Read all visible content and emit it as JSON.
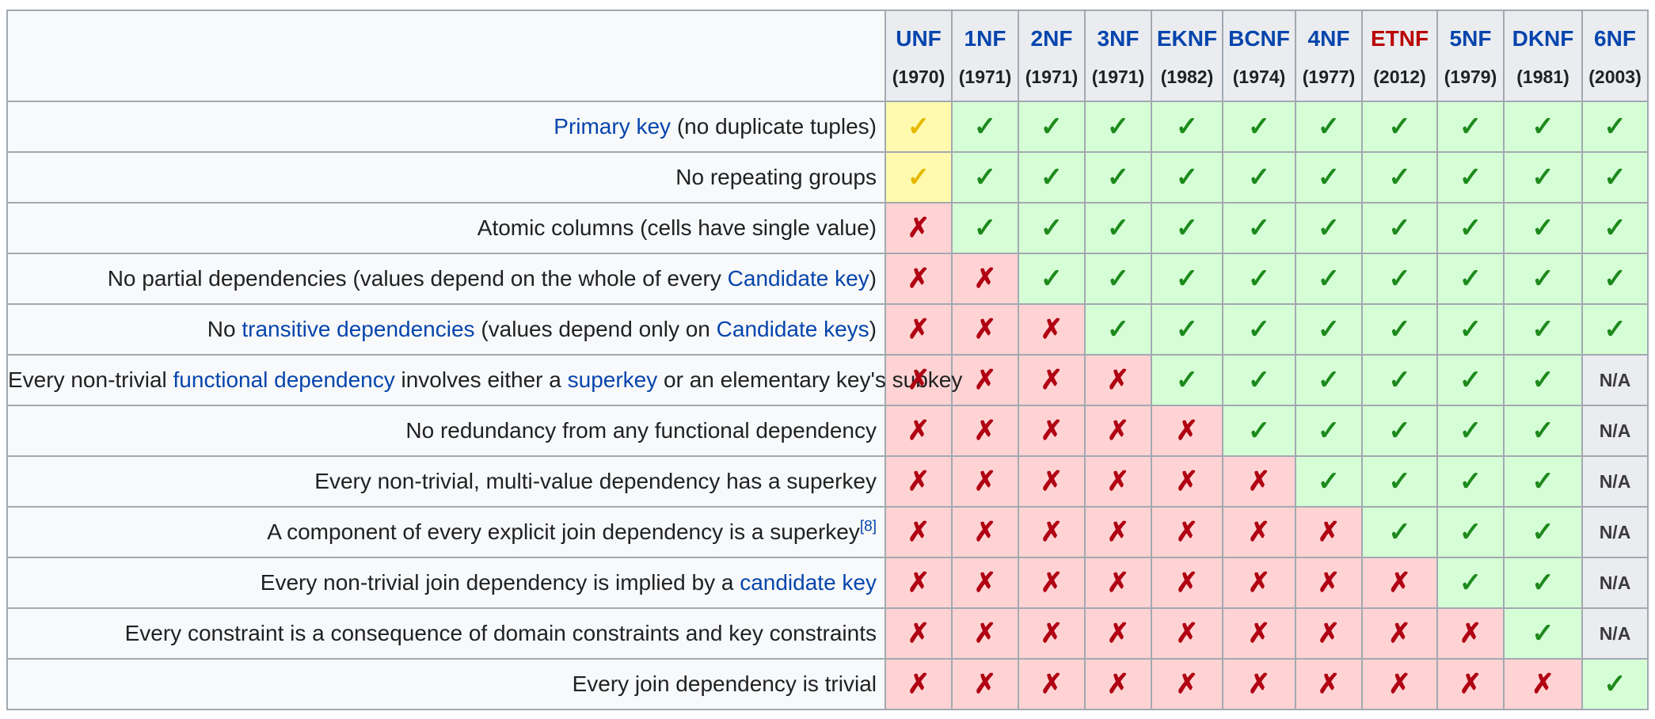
{
  "columns": [
    {
      "name": "UNF",
      "year": "(1970)",
      "highlight": false
    },
    {
      "name": "1NF",
      "year": "(1971)",
      "highlight": false
    },
    {
      "name": "2NF",
      "year": "(1971)",
      "highlight": false
    },
    {
      "name": "3NF",
      "year": "(1971)",
      "highlight": false
    },
    {
      "name": "EKNF",
      "year": "(1982)",
      "highlight": false
    },
    {
      "name": "BCNF",
      "year": "(1974)",
      "highlight": false
    },
    {
      "name": "4NF",
      "year": "(1977)",
      "highlight": false
    },
    {
      "name": "ETNF",
      "year": "(2012)",
      "highlight": true
    },
    {
      "name": "5NF",
      "year": "(1979)",
      "highlight": false
    },
    {
      "name": "DKNF",
      "year": "(1981)",
      "highlight": false
    },
    {
      "name": "6NF",
      "year": "(2003)",
      "highlight": false
    }
  ],
  "rows": [
    {
      "label": [
        {
          "t": "Primary key",
          "link": true
        },
        {
          "t": " (no duplicate tuples)"
        }
      ],
      "values": [
        "partial",
        "yes",
        "yes",
        "yes",
        "yes",
        "yes",
        "yes",
        "yes",
        "yes",
        "yes",
        "yes"
      ]
    },
    {
      "label": [
        {
          "t": "No repeating groups"
        }
      ],
      "values": [
        "partial",
        "yes",
        "yes",
        "yes",
        "yes",
        "yes",
        "yes",
        "yes",
        "yes",
        "yes",
        "yes"
      ]
    },
    {
      "label": [
        {
          "t": "Atomic columns (cells have single value)"
        }
      ],
      "values": [
        "no",
        "yes",
        "yes",
        "yes",
        "yes",
        "yes",
        "yes",
        "yes",
        "yes",
        "yes",
        "yes"
      ]
    },
    {
      "label": [
        {
          "t": "No partial dependencies (values depend on the whole of every "
        },
        {
          "t": "Candidate key",
          "link": true
        },
        {
          "t": ")"
        }
      ],
      "values": [
        "no",
        "no",
        "yes",
        "yes",
        "yes",
        "yes",
        "yes",
        "yes",
        "yes",
        "yes",
        "yes"
      ]
    },
    {
      "label": [
        {
          "t": "No "
        },
        {
          "t": "transitive dependencies",
          "link": true
        },
        {
          "t": " (values depend only on "
        },
        {
          "t": "Candidate keys",
          "link": true
        },
        {
          "t": ")"
        }
      ],
      "values": [
        "no",
        "no",
        "no",
        "yes",
        "yes",
        "yes",
        "yes",
        "yes",
        "yes",
        "yes",
        "yes"
      ]
    },
    {
      "label": [
        {
          "t": "Every non-trivial "
        },
        {
          "t": "functional dependency",
          "link": true
        },
        {
          "t": " involves either a "
        },
        {
          "t": "superkey",
          "link": true
        },
        {
          "t": " or an elementary key's subkey"
        }
      ],
      "values": [
        "no",
        "no",
        "no",
        "no",
        "yes",
        "yes",
        "yes",
        "yes",
        "yes",
        "yes",
        "na"
      ]
    },
    {
      "label": [
        {
          "t": "No redundancy from any functional dependency"
        }
      ],
      "values": [
        "no",
        "no",
        "no",
        "no",
        "no",
        "yes",
        "yes",
        "yes",
        "yes",
        "yes",
        "na"
      ]
    },
    {
      "label": [
        {
          "t": "Every non-trivial, multi-value dependency has a superkey"
        }
      ],
      "values": [
        "no",
        "no",
        "no",
        "no",
        "no",
        "no",
        "yes",
        "yes",
        "yes",
        "yes",
        "na"
      ]
    },
    {
      "label": [
        {
          "t": "A component of every explicit join dependency is a superkey"
        },
        {
          "t": "[8]",
          "sup": true
        }
      ],
      "values": [
        "no",
        "no",
        "no",
        "no",
        "no",
        "no",
        "no",
        "yes",
        "yes",
        "yes",
        "na"
      ]
    },
    {
      "label": [
        {
          "t": "Every non-trivial join dependency is implied by a "
        },
        {
          "t": "candidate key",
          "link": true
        }
      ],
      "values": [
        "no",
        "no",
        "no",
        "no",
        "no",
        "no",
        "no",
        "no",
        "yes",
        "yes",
        "na"
      ]
    },
    {
      "label": [
        {
          "t": "Every constraint is a consequence of domain constraints and key constraints"
        }
      ],
      "values": [
        "no",
        "no",
        "no",
        "no",
        "no",
        "no",
        "no",
        "no",
        "no",
        "yes",
        "na"
      ]
    },
    {
      "label": [
        {
          "t": "Every join dependency is trivial"
        }
      ],
      "values": [
        "no",
        "no",
        "no",
        "no",
        "no",
        "no",
        "no",
        "no",
        "no",
        "no",
        "yes"
      ]
    }
  ],
  "symbols": {
    "yes": "✓",
    "partial": "✓",
    "no": "✗",
    "na": "N/A"
  },
  "colors": {
    "header_bg": "#eaecf0",
    "link": "#0645ad",
    "highlight_text": "#ba0000",
    "yes_bg": "#d6fed6",
    "yes_fg": "#1c8a1c",
    "partial_bg": "#fffaad",
    "partial_fg": "#e6b800",
    "no_bg": "#ffd3d3",
    "no_fg": "#b00012",
    "na_bg": "#eaecf0"
  }
}
